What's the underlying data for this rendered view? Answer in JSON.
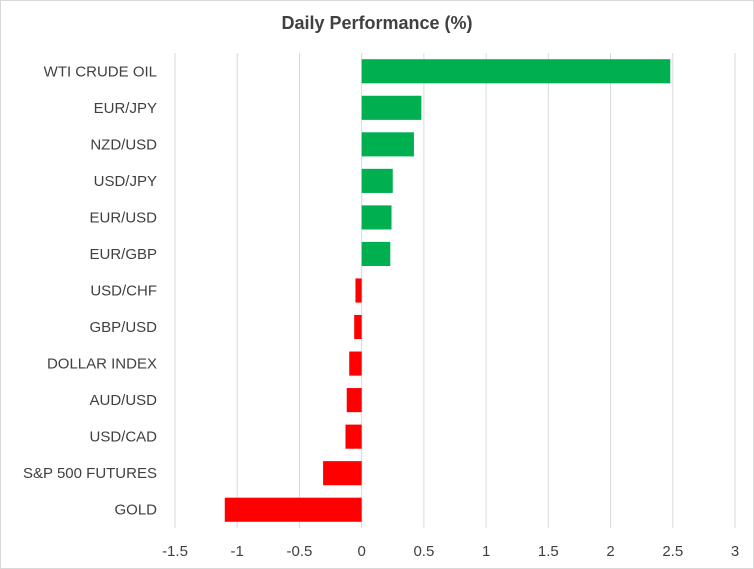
{
  "chart_data": {
    "type": "bar",
    "orientation": "horizontal",
    "title": "Daily Performance (%)",
    "categories": [
      "WTI CRUDE OIL",
      "EUR/JPY",
      "NZD/USD",
      "USD/JPY",
      "EUR/USD",
      "EUR/GBP",
      "USD/CHF",
      "GBP/USD",
      "DOLLAR INDEX",
      "AUD/USD",
      "USD/CAD",
      "S&P 500 FUTURES",
      "GOLD"
    ],
    "values": [
      2.48,
      0.48,
      0.42,
      0.25,
      0.24,
      0.23,
      -0.05,
      -0.06,
      -0.1,
      -0.12,
      -0.13,
      -0.31,
      -1.1
    ],
    "xlim": [
      -1.5,
      3
    ],
    "xticks": [
      -1.5,
      -1,
      -0.5,
      0,
      0.5,
      1,
      1.5,
      2,
      2.5,
      3
    ],
    "xtick_labels": [
      "-1.5",
      "-1",
      "-0.5",
      "0",
      "0.5",
      "1",
      "1.5",
      "2",
      "2.5",
      "3"
    ],
    "grid": "vertical",
    "legend": "none",
    "colors": {
      "positive": "#00b050",
      "negative": "#ff0000",
      "grid": "#d9d9d9",
      "text": "#404040"
    }
  }
}
